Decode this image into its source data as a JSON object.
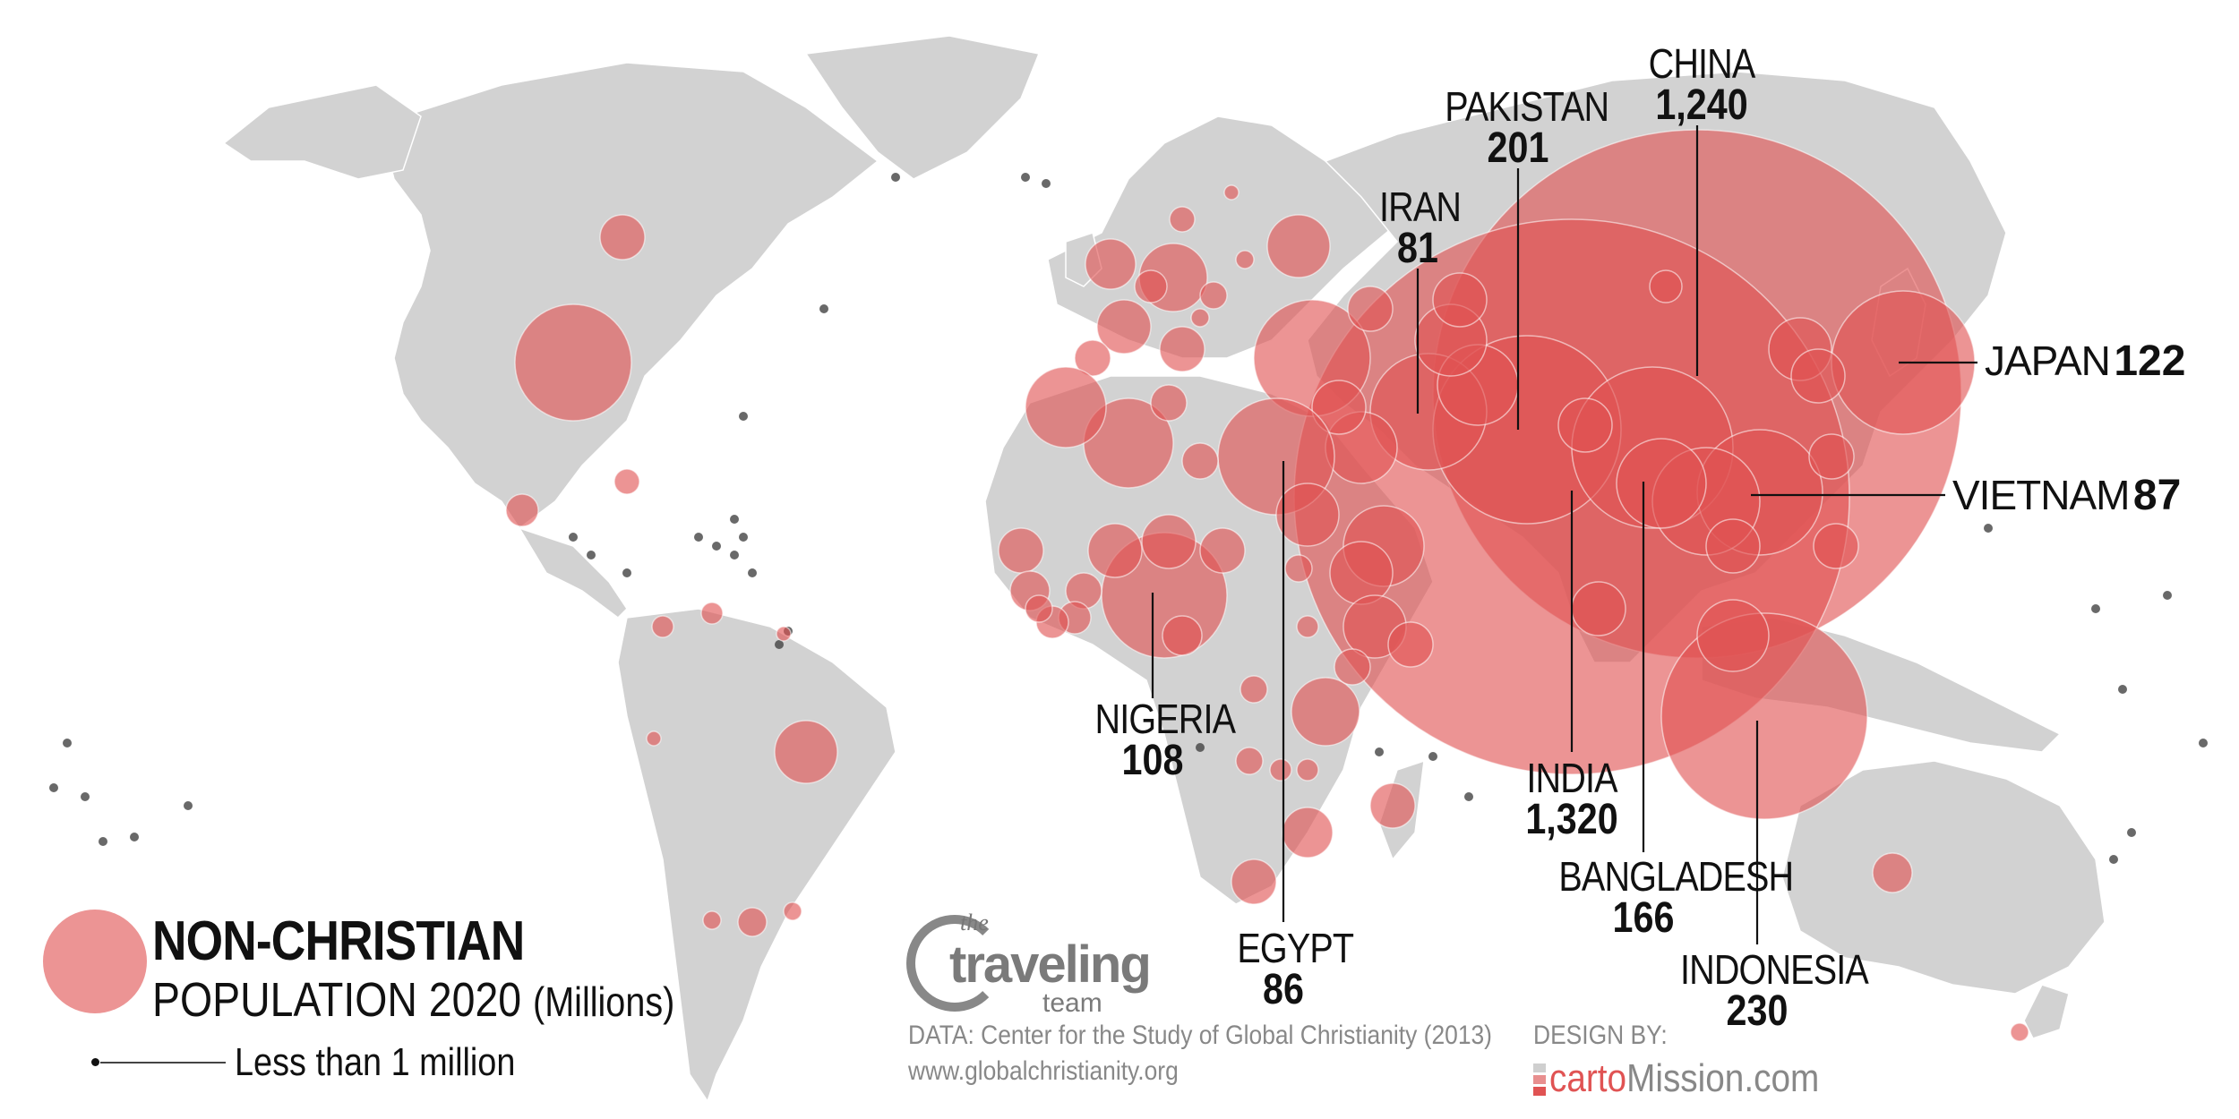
{
  "legend": {
    "title": "NON-CHRISTIAN",
    "subtitle": "POPULATION 2020",
    "unit": "(Millions)",
    "small_note": "Less than 1 million"
  },
  "credits": {
    "data_source": "DATA: Center for the Study of Global Christianity (2013)",
    "url": "www.globalchristianity.org",
    "design_by": "DESIGN BY:",
    "designer_brand_a": "carto",
    "designer_brand_b": "Mission.com",
    "logo_the": "the",
    "logo_main": "traveling",
    "logo_team": "team"
  },
  "colors": {
    "bubble": "#e05353",
    "land": "#d2d2d2",
    "text": "#111111",
    "credit_text": "#888888"
  },
  "labels": {
    "china": {
      "name": "CHINA",
      "value": "1,240"
    },
    "pakistan": {
      "name": "PAKISTAN",
      "value": "201"
    },
    "iran": {
      "name": "IRAN",
      "value": "81"
    },
    "japan": {
      "name": "JAPAN",
      "value": "122"
    },
    "vietnam": {
      "name": "VIETNAM",
      "value": "87"
    },
    "nigeria": {
      "name": "NIGERIA",
      "value": "108"
    },
    "india": {
      "name": "INDIA",
      "value": "1,320"
    },
    "bangladesh": {
      "name": "BANGLADESH",
      "value": "166"
    },
    "indonesia": {
      "name": "INDONESIA",
      "value": "230"
    },
    "egypt": {
      "name": "EGYPT",
      "value": "86"
    }
  }
}
